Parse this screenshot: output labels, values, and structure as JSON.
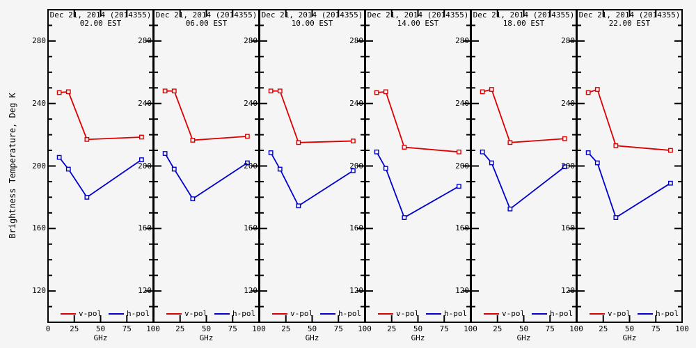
{
  "figure": {
    "y_axis_title": "Brightness Temperature, Deg K",
    "background": "#f5f5f5",
    "axis_color": "#000000"
  },
  "chart_data": {
    "type": "line",
    "xlabel": "GHz",
    "ylabel": "Brightness Temperature, Deg K",
    "x_frequencies_ghz": [
      10.7,
      19.4,
      37,
      89
    ],
    "xlim": [
      0,
      100
    ],
    "ylim": [
      100,
      300
    ],
    "x_major_ticks": [
      0,
      25,
      50,
      75,
      100
    ],
    "y_major_ticks": [
      280,
      240,
      200,
      160,
      120
    ],
    "y_minor_tick_step": 10,
    "grid": "off",
    "legend_position": "bottom-inside-each-panel",
    "legend": [
      {
        "label": "v-pol",
        "color": "#dd0000"
      },
      {
        "label": "h-pol",
        "color": "#0000cc"
      }
    ],
    "panels": [
      {
        "title_line1": "Dec 21, 2014 (2014355)",
        "title_line2": "02.00 EST",
        "series": [
          {
            "name": "v-pol",
            "color": "#dd0000",
            "values": [
              247,
              247.5,
              217,
              218.5
            ]
          },
          {
            "name": "h-pol",
            "color": "#0000cc",
            "values": [
              205.5,
              198,
              180,
              204
            ]
          }
        ]
      },
      {
        "title_line1": "Dec 21, 2014 (2014355)",
        "title_line2": "06.00 EST",
        "series": [
          {
            "name": "v-pol",
            "color": "#dd0000",
            "values": [
              248,
              248,
              216.5,
              219
            ]
          },
          {
            "name": "h-pol",
            "color": "#0000cc",
            "values": [
              208,
              198,
              179,
              202
            ]
          }
        ]
      },
      {
        "title_line1": "Dec 21, 2014 (2014355)",
        "title_line2": "10.00 EST",
        "series": [
          {
            "name": "v-pol",
            "color": "#dd0000",
            "values": [
              248,
              248,
              215,
              216
            ]
          },
          {
            "name": "h-pol",
            "color": "#0000cc",
            "values": [
              208.5,
              198,
              174.5,
              197
            ]
          }
        ]
      },
      {
        "title_line1": "Dec 21, 2014 (2014355)",
        "title_line2": "14.00 EST",
        "series": [
          {
            "name": "v-pol",
            "color": "#dd0000",
            "values": [
              247,
              247.5,
              212,
              209
            ]
          },
          {
            "name": "h-pol",
            "color": "#0000cc",
            "values": [
              209,
              198.5,
              167,
              187
            ]
          }
        ]
      },
      {
        "title_line1": "Dec 21, 2014 (2014355)",
        "title_line2": "18.00 EST",
        "series": [
          {
            "name": "v-pol",
            "color": "#dd0000",
            "values": [
              247.5,
              249,
              215,
              217.5
            ]
          },
          {
            "name": "h-pol",
            "color": "#0000cc",
            "values": [
              209,
              202,
              172.5,
              199.5
            ]
          }
        ]
      },
      {
        "title_line1": "Dec 21, 2014 (2014355)",
        "title_line2": "22.00 EST",
        "series": [
          {
            "name": "v-pol",
            "color": "#dd0000",
            "values": [
              247,
              249,
              213,
              210
            ]
          },
          {
            "name": "h-pol",
            "color": "#0000cc",
            "values": [
              208.5,
              202,
              167,
              189
            ]
          }
        ]
      }
    ]
  }
}
